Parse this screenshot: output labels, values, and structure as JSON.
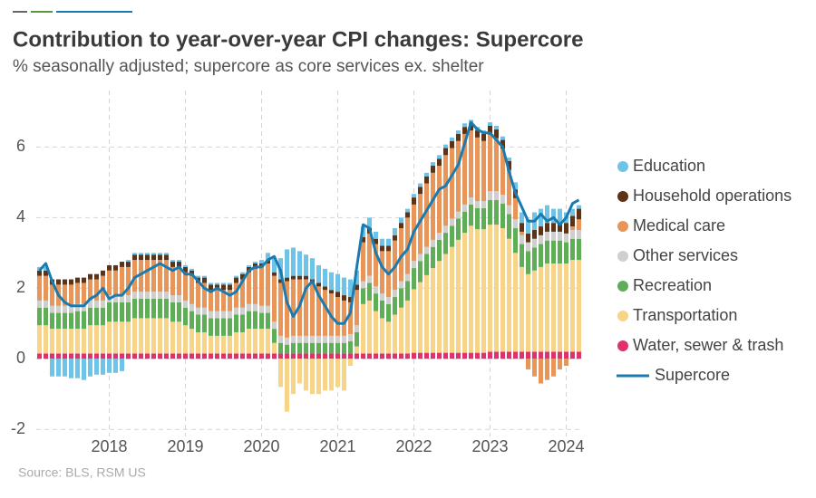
{
  "chart_data": {
    "type": "bar",
    "stacked": true,
    "title": "Contribution to year-over-year CPI changes: Supercore",
    "subtitle": "% seasonally adjusted; supercore as core services ex. shelter",
    "source": "Source: BLS, RSM US",
    "categories": [
      null,
      null,
      null,
      null,
      null,
      null,
      null,
      null,
      null,
      null,
      null,
      "2018",
      null,
      null,
      null,
      null,
      null,
      null,
      null,
      null,
      null,
      null,
      null,
      "2019",
      null,
      null,
      null,
      null,
      null,
      null,
      null,
      null,
      null,
      null,
      null,
      "2020",
      null,
      null,
      null,
      null,
      null,
      null,
      null,
      null,
      null,
      null,
      null,
      "2021",
      null,
      null,
      null,
      null,
      null,
      null,
      null,
      null,
      null,
      null,
      null,
      "2022",
      null,
      null,
      null,
      null,
      null,
      null,
      null,
      null,
      null,
      null,
      null,
      "2023",
      null,
      null,
      null,
      null,
      null,
      null,
      null,
      null,
      null,
      null,
      null,
      "2024",
      null,
      null
    ],
    "ylim": [
      -2.2,
      7.6
    ],
    "yticks": [
      -2,
      0,
      2,
      4,
      6
    ],
    "grid": true,
    "legend": "right",
    "series": [
      {
        "name": "Water, sewer & trash",
        "color": "#e0306e",
        "values": [
          0.15,
          0.15,
          0.15,
          0.15,
          0.15,
          0.15,
          0.15,
          0.15,
          0.15,
          0.15,
          0.15,
          0.15,
          0.15,
          0.15,
          0.15,
          0.15,
          0.15,
          0.15,
          0.15,
          0.15,
          0.15,
          0.15,
          0.15,
          0.15,
          0.15,
          0.15,
          0.15,
          0.15,
          0.15,
          0.15,
          0.15,
          0.15,
          0.15,
          0.15,
          0.15,
          0.15,
          0.15,
          0.15,
          0.15,
          0.15,
          0.15,
          0.15,
          0.15,
          0.15,
          0.15,
          0.15,
          0.15,
          0.15,
          0.15,
          0.15,
          0.15,
          0.15,
          0.15,
          0.15,
          0.15,
          0.15,
          0.15,
          0.15,
          0.15,
          0.17,
          0.17,
          0.17,
          0.17,
          0.17,
          0.17,
          0.17,
          0.17,
          0.17,
          0.17,
          0.17,
          0.17,
          0.2,
          0.2,
          0.2,
          0.2,
          0.2,
          0.2,
          0.2,
          0.2,
          0.2,
          0.2,
          0.2,
          0.2,
          0.2,
          0.2,
          0.2
        ]
      },
      {
        "name": "Transportation",
        "color": "#f7d488",
        "values": [
          0.8,
          0.8,
          0.7,
          0.7,
          0.7,
          0.7,
          0.7,
          0.7,
          0.8,
          0.8,
          0.8,
          0.9,
          0.9,
          0.9,
          0.9,
          1.0,
          1.0,
          1.0,
          1.0,
          1.0,
          1.0,
          0.9,
          0.9,
          0.8,
          0.7,
          0.6,
          0.6,
          0.5,
          0.5,
          0.5,
          0.5,
          0.6,
          0.6,
          0.7,
          0.7,
          0.7,
          0.7,
          0.3,
          -0.8,
          -1.5,
          -1.0,
          -0.7,
          -0.9,
          -1.0,
          -1.0,
          -0.9,
          -0.9,
          -0.8,
          -0.9,
          -0.2,
          0.2,
          1.4,
          1.5,
          1.2,
          1.0,
          0.9,
          1.1,
          1.3,
          1.5,
          1.8,
          2.0,
          2.2,
          2.4,
          2.6,
          2.8,
          3.0,
          3.2,
          3.4,
          3.6,
          3.5,
          3.5,
          3.6,
          3.6,
          3.5,
          3.2,
          2.8,
          2.4,
          2.2,
          2.3,
          2.4,
          2.5,
          2.5,
          2.5,
          2.5,
          2.6,
          2.6
        ]
      },
      {
        "name": "Recreation",
        "color": "#5fae57",
        "values": [
          0.5,
          0.5,
          0.45,
          0.45,
          0.45,
          0.45,
          0.5,
          0.5,
          0.5,
          0.5,
          0.5,
          0.55,
          0.55,
          0.55,
          0.55,
          0.55,
          0.55,
          0.55,
          0.55,
          0.55,
          0.55,
          0.55,
          0.55,
          0.5,
          0.5,
          0.5,
          0.5,
          0.5,
          0.5,
          0.5,
          0.5,
          0.5,
          0.5,
          0.5,
          0.5,
          0.45,
          0.45,
          0.4,
          0.3,
          0.25,
          0.3,
          0.3,
          0.3,
          0.3,
          0.3,
          0.3,
          0.3,
          0.3,
          0.3,
          0.35,
          0.4,
          0.45,
          0.5,
          0.5,
          0.5,
          0.5,
          0.5,
          0.55,
          0.55,
          0.6,
          0.6,
          0.6,
          0.6,
          0.6,
          0.6,
          0.6,
          0.6,
          0.6,
          0.6,
          0.6,
          0.6,
          0.7,
          0.7,
          0.7,
          0.7,
          0.7,
          0.65,
          0.65,
          0.65,
          0.65,
          0.65,
          0.65,
          0.65,
          0.6,
          0.6,
          0.6
        ]
      },
      {
        "name": "Other services",
        "color": "#cfcfcf",
        "values": [
          0.2,
          0.2,
          0.2,
          0.2,
          0.2,
          0.2,
          0.2,
          0.2,
          0.2,
          0.2,
          0.2,
          0.2,
          0.2,
          0.2,
          0.2,
          0.2,
          0.2,
          0.2,
          0.2,
          0.2,
          0.2,
          0.2,
          0.2,
          0.2,
          0.2,
          0.2,
          0.2,
          0.2,
          0.2,
          0.2,
          0.2,
          0.2,
          0.2,
          0.2,
          0.2,
          0.2,
          0.2,
          0.2,
          0.2,
          0.2,
          0.2,
          0.2,
          0.2,
          0.2,
          0.2,
          0.2,
          0.2,
          0.2,
          0.2,
          0.2,
          0.2,
          0.2,
          0.2,
          0.2,
          0.2,
          0.2,
          0.2,
          0.2,
          0.2,
          0.2,
          0.2,
          0.2,
          0.2,
          0.2,
          0.2,
          0.2,
          0.2,
          0.2,
          0.2,
          0.2,
          0.2,
          0.25,
          0.25,
          0.25,
          0.25,
          0.25,
          0.25,
          0.25,
          0.25,
          0.25,
          0.25,
          0.25,
          0.25,
          0.25,
          0.25,
          0.25
        ]
      },
      {
        "name": "Medical care",
        "color": "#e8955a",
        "values": [
          0.7,
          0.7,
          0.6,
          0.6,
          0.6,
          0.6,
          0.6,
          0.6,
          0.6,
          0.6,
          0.7,
          0.7,
          0.7,
          0.8,
          0.8,
          0.9,
          0.9,
          0.9,
          0.9,
          0.9,
          0.9,
          0.8,
          0.8,
          0.8,
          0.8,
          0.7,
          0.7,
          0.6,
          0.6,
          0.6,
          0.6,
          0.7,
          0.8,
          0.9,
          1.0,
          1.1,
          1.2,
          1.3,
          1.5,
          1.6,
          1.6,
          1.6,
          1.6,
          1.5,
          1.4,
          1.3,
          1.2,
          1.1,
          1.0,
          0.9,
          1.0,
          1.1,
          1.2,
          1.2,
          1.2,
          1.3,
          1.4,
          1.5,
          1.6,
          1.6,
          1.7,
          1.8,
          1.9,
          1.9,
          2.0,
          2.0,
          2.0,
          2.0,
          1.9,
          1.8,
          1.7,
          1.6,
          1.5,
          1.3,
          1.0,
          0.6,
          0.1,
          -0.3,
          -0.5,
          -0.7,
          -0.6,
          -0.5,
          -0.3,
          -0.2,
          0.1,
          0.3
        ]
      },
      {
        "name": "Household operations",
        "color": "#5c3317",
        "values": [
          0.15,
          0.15,
          0.15,
          0.15,
          0.15,
          0.15,
          0.15,
          0.15,
          0.15,
          0.15,
          0.15,
          0.15,
          0.15,
          0.15,
          0.15,
          0.15,
          0.15,
          0.15,
          0.15,
          0.15,
          0.15,
          0.15,
          0.15,
          0.15,
          0.15,
          0.15,
          0.15,
          0.15,
          0.15,
          0.15,
          0.15,
          0.15,
          0.15,
          0.15,
          0.15,
          0.1,
          0.1,
          0.1,
          0.1,
          0.1,
          0.1,
          0.1,
          0.1,
          0.1,
          0.1,
          0.1,
          0.1,
          0.15,
          0.15,
          0.15,
          0.15,
          0.15,
          0.15,
          0.15,
          0.15,
          0.15,
          0.15,
          0.15,
          0.15,
          0.2,
          0.2,
          0.2,
          0.2,
          0.2,
          0.2,
          0.2,
          0.2,
          0.2,
          0.2,
          0.2,
          0.2,
          0.25,
          0.25,
          0.25,
          0.25,
          0.25,
          0.25,
          0.25,
          0.25,
          0.25,
          0.25,
          0.25,
          0.25,
          0.3,
          0.3,
          0.3
        ]
      },
      {
        "name": "Education",
        "color": "#6ec3e8",
        "values": [
          0.1,
          0.1,
          -0.5,
          -0.5,
          -0.5,
          -0.55,
          -0.55,
          -0.6,
          -0.5,
          -0.45,
          -0.45,
          -0.4,
          -0.4,
          -0.35,
          0.05,
          0.05,
          0.05,
          0.05,
          0.05,
          0.05,
          0.05,
          0.05,
          0.05,
          0.05,
          0.05,
          0.05,
          0.05,
          0.05,
          0.05,
          0.05,
          0.05,
          0.05,
          0.05,
          0.05,
          0.05,
          0.1,
          0.2,
          0.4,
          0.6,
          0.8,
          0.8,
          0.7,
          0.6,
          0.6,
          0.5,
          0.5,
          0.5,
          0.5,
          0.5,
          0.5,
          0.4,
          0.3,
          0.3,
          0.2,
          0.2,
          0.2,
          0.2,
          0.15,
          0.1,
          0.1,
          0.1,
          0.1,
          0.1,
          0.1,
          0.1,
          0.1,
          0.1,
          0.1,
          0.1,
          0.1,
          0.1,
          0.1,
          0.1,
          0.1,
          0.1,
          0.2,
          0.3,
          0.4,
          0.5,
          0.5,
          0.5,
          0.4,
          0.4,
          0.3,
          0.2,
          0.1
        ]
      },
      {
        "name": "Supercore",
        "color": "#1a7bb0",
        "type": "line",
        "values": [
          2.5,
          2.7,
          2.2,
          1.8,
          1.6,
          1.5,
          1.5,
          1.5,
          1.7,
          1.8,
          2.0,
          1.7,
          1.8,
          1.8,
          2.0,
          2.3,
          2.4,
          2.5,
          2.6,
          2.7,
          2.6,
          2.5,
          2.6,
          2.4,
          2.4,
          2.2,
          2.0,
          1.9,
          2.0,
          1.9,
          1.8,
          1.9,
          2.2,
          2.5,
          2.6,
          2.6,
          2.8,
          2.9,
          2.5,
          1.6,
          1.2,
          1.5,
          2.0,
          2.2,
          1.8,
          1.5,
          1.2,
          1.0,
          1.0,
          1.3,
          2.6,
          3.8,
          3.7,
          3.0,
          2.6,
          2.4,
          2.6,
          2.9,
          3.1,
          3.6,
          3.9,
          4.2,
          4.5,
          4.8,
          4.9,
          5.2,
          5.5,
          6.1,
          6.7,
          6.5,
          6.4,
          6.4,
          6.2,
          6.0,
          5.3,
          4.7,
          4.3,
          3.9,
          3.9,
          4.1,
          3.9,
          4.0,
          3.8,
          4.0,
          4.4,
          4.5
        ]
      }
    ]
  }
}
